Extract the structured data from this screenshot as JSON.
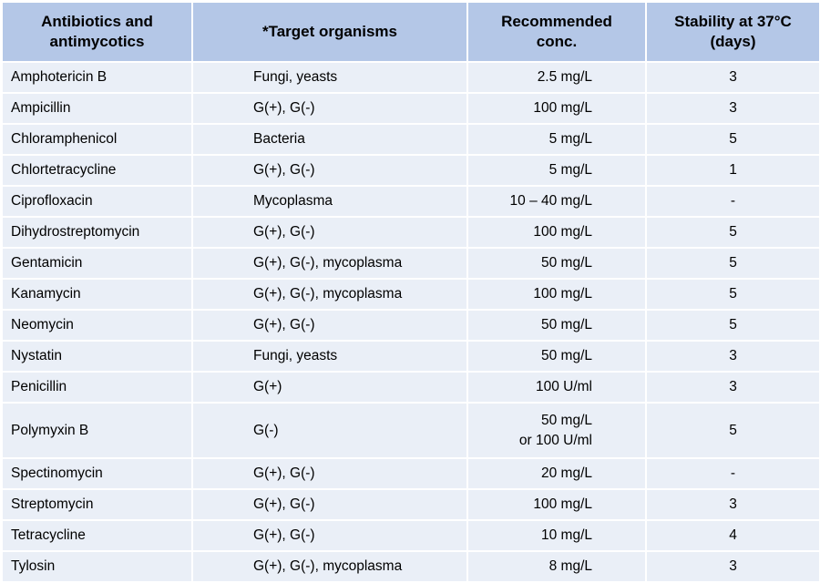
{
  "table": {
    "headers": [
      "Antibiotics and\nantimycotics",
      "*Target organisms",
      "Recommended\nconc.",
      "Stability at 37°C\n(days)"
    ],
    "rows": [
      [
        "Amphotericin B",
        "Fungi, yeasts",
        "2.5 mg/L",
        "3"
      ],
      [
        "Ampicillin",
        "G(+), G(-)",
        "100 mg/L",
        "3"
      ],
      [
        "Chloramphenicol",
        "Bacteria",
        "5 mg/L",
        "5"
      ],
      [
        "Chlortetracycline",
        "G(+), G(-)",
        "5 mg/L",
        "1"
      ],
      [
        "Ciprofloxacin",
        "Mycoplasma",
        "10 – 40 mg/L",
        "-"
      ],
      [
        "Dihydrostreptomycin",
        "G(+), G(-)",
        "100 mg/L",
        "5"
      ],
      [
        "Gentamicin",
        "G(+), G(-), mycoplasma",
        "50 mg/L",
        "5"
      ],
      [
        "Kanamycin",
        "G(+), G(-), mycoplasma",
        "100 mg/L",
        "5"
      ],
      [
        "Neomycin",
        "G(+), G(-)",
        "50 mg/L",
        "5"
      ],
      [
        "Nystatin",
        "Fungi, yeasts",
        "50 mg/L",
        "3"
      ],
      [
        "Penicillin",
        "G(+)",
        "100 U/ml",
        "3"
      ],
      [
        "Polymyxin B",
        "G(-)",
        "50 mg/L\nor 100 U/ml",
        "5"
      ],
      [
        "Spectinomycin",
        "G(+), G(-)",
        "20 mg/L",
        "-"
      ],
      [
        "Streptomycin",
        "G(+), G(-)",
        "100 mg/L",
        "3"
      ],
      [
        "Tetracycline",
        "G(+), G(-)",
        "10 mg/L",
        "4"
      ],
      [
        "Tylosin",
        "G(+), G(-), mycoplasma",
        "8 mg/L",
        "3"
      ]
    ]
  },
  "colors": {
    "header_bg": "#b4c7e7",
    "row_bg": "#eaeff7",
    "border": "#ffffff"
  }
}
